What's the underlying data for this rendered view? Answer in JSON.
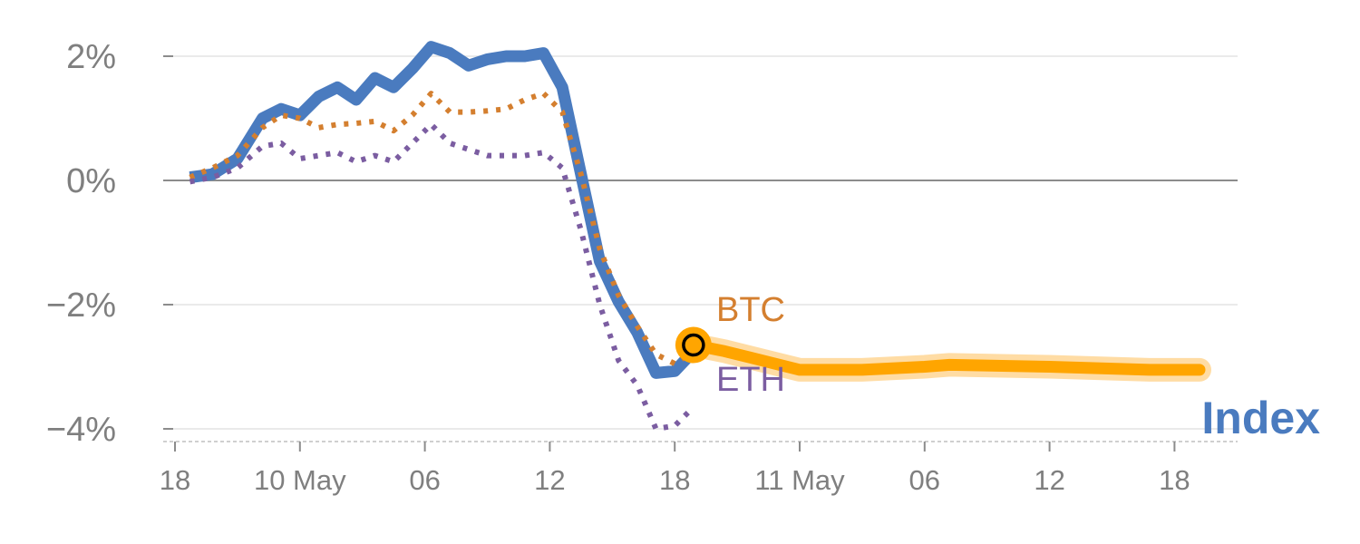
{
  "chart_data": {
    "type": "line",
    "y_ticks": [
      {
        "value": 2,
        "label": "2%"
      },
      {
        "value": 0,
        "label": "0%"
      },
      {
        "value": -2,
        "label": "−2%"
      },
      {
        "value": -4,
        "label": "−4%"
      }
    ],
    "ylim": [
      -4.2,
      2.35
    ],
    "x_ticks": [
      {
        "x": 0,
        "label": "18"
      },
      {
        "x": 10,
        "label": "10 May"
      },
      {
        "x": 20,
        "label": "06"
      },
      {
        "x": 30,
        "label": "12"
      },
      {
        "x": 40,
        "label": "18"
      },
      {
        "x": 50,
        "label": "11 May"
      },
      {
        "x": 60,
        "label": "06"
      },
      {
        "x": 70,
        "label": "12"
      },
      {
        "x": 80,
        "label": "18"
      }
    ],
    "xlim": [
      0,
      85
    ],
    "grid": true,
    "series": [
      {
        "name": "Index",
        "color": "#4a7bbf",
        "style": "solid",
        "points": [
          [
            1.2,
            0.05
          ],
          [
            3,
            0.1
          ],
          [
            5,
            0.35
          ],
          [
            7,
            1.0
          ],
          [
            8.5,
            1.15
          ],
          [
            10,
            1.05
          ],
          [
            11.5,
            1.35
          ],
          [
            13,
            1.5
          ],
          [
            14.5,
            1.3
          ],
          [
            16,
            1.65
          ],
          [
            17.5,
            1.5
          ],
          [
            19,
            1.8
          ],
          [
            20.5,
            2.15
          ],
          [
            22,
            2.05
          ],
          [
            23.5,
            1.85
          ],
          [
            25,
            1.95
          ],
          [
            26.5,
            2.0
          ],
          [
            28,
            2.0
          ],
          [
            29.5,
            2.05
          ],
          [
            31,
            1.5
          ],
          [
            32.5,
            0.1
          ],
          [
            34,
            -1.3
          ],
          [
            35.5,
            -1.95
          ],
          [
            37,
            -2.45
          ],
          [
            38.5,
            -3.1
          ],
          [
            40,
            -3.07
          ],
          [
            41.5,
            -2.75
          ]
        ]
      },
      {
        "name": "BTC",
        "color": "#d47f2f",
        "style": "dotted",
        "points": [
          [
            1.2,
            0.05
          ],
          [
            3,
            0.2
          ],
          [
            5,
            0.4
          ],
          [
            7,
            0.85
          ],
          [
            8.5,
            1.05
          ],
          [
            10,
            1.0
          ],
          [
            11.5,
            0.85
          ],
          [
            13,
            0.9
          ],
          [
            14.5,
            0.92
          ],
          [
            16,
            0.95
          ],
          [
            17.5,
            0.8
          ],
          [
            19,
            1.05
          ],
          [
            20.5,
            1.4
          ],
          [
            22,
            1.1
          ],
          [
            23.5,
            1.1
          ],
          [
            25,
            1.12
          ],
          [
            26.5,
            1.15
          ],
          [
            28,
            1.3
          ],
          [
            29.5,
            1.4
          ],
          [
            31,
            1.1
          ],
          [
            32.5,
            0.1
          ],
          [
            34,
            -1.1
          ],
          [
            35.5,
            -1.85
          ],
          [
            37,
            -2.35
          ],
          [
            38.5,
            -2.8
          ],
          [
            40,
            -2.95
          ],
          [
            41.5,
            -2.75
          ]
        ]
      },
      {
        "name": "ETH",
        "color": "#7b5da1",
        "style": "dotted",
        "points": [
          [
            1.2,
            -0.02
          ],
          [
            3,
            0.05
          ],
          [
            5,
            0.2
          ],
          [
            7,
            0.55
          ],
          [
            8.5,
            0.6
          ],
          [
            10,
            0.35
          ],
          [
            11.5,
            0.4
          ],
          [
            13,
            0.45
          ],
          [
            14.5,
            0.3
          ],
          [
            16,
            0.4
          ],
          [
            17.5,
            0.3
          ],
          [
            19,
            0.6
          ],
          [
            20.5,
            0.9
          ],
          [
            22,
            0.6
          ],
          [
            23.5,
            0.5
          ],
          [
            25,
            0.4
          ],
          [
            26.5,
            0.4
          ],
          [
            28,
            0.4
          ],
          [
            29.5,
            0.45
          ],
          [
            31,
            0.2
          ],
          [
            32.5,
            -0.8
          ],
          [
            34,
            -2.0
          ],
          [
            35.5,
            -2.9
          ],
          [
            37,
            -3.3
          ],
          [
            38.5,
            -4.0
          ],
          [
            40,
            -3.95
          ],
          [
            41.5,
            -3.65
          ]
        ]
      },
      {
        "name": "Index",
        "color": "#ffa500",
        "style": "forecast-band",
        "points": [
          [
            41.5,
            -2.65
          ],
          [
            44,
            -2.75
          ],
          [
            46,
            -2.85
          ],
          [
            50,
            -3.05
          ],
          [
            55,
            -3.05
          ],
          [
            60,
            -3.0
          ],
          [
            62,
            -2.97
          ],
          [
            70,
            -3.0
          ],
          [
            78,
            -3.05
          ],
          [
            82,
            -3.05
          ]
        ]
      }
    ],
    "marker": {
      "x": 41.5,
      "y": -2.65
    },
    "labels": {
      "btc": "BTC",
      "eth": "ETH",
      "index": "Index"
    }
  }
}
